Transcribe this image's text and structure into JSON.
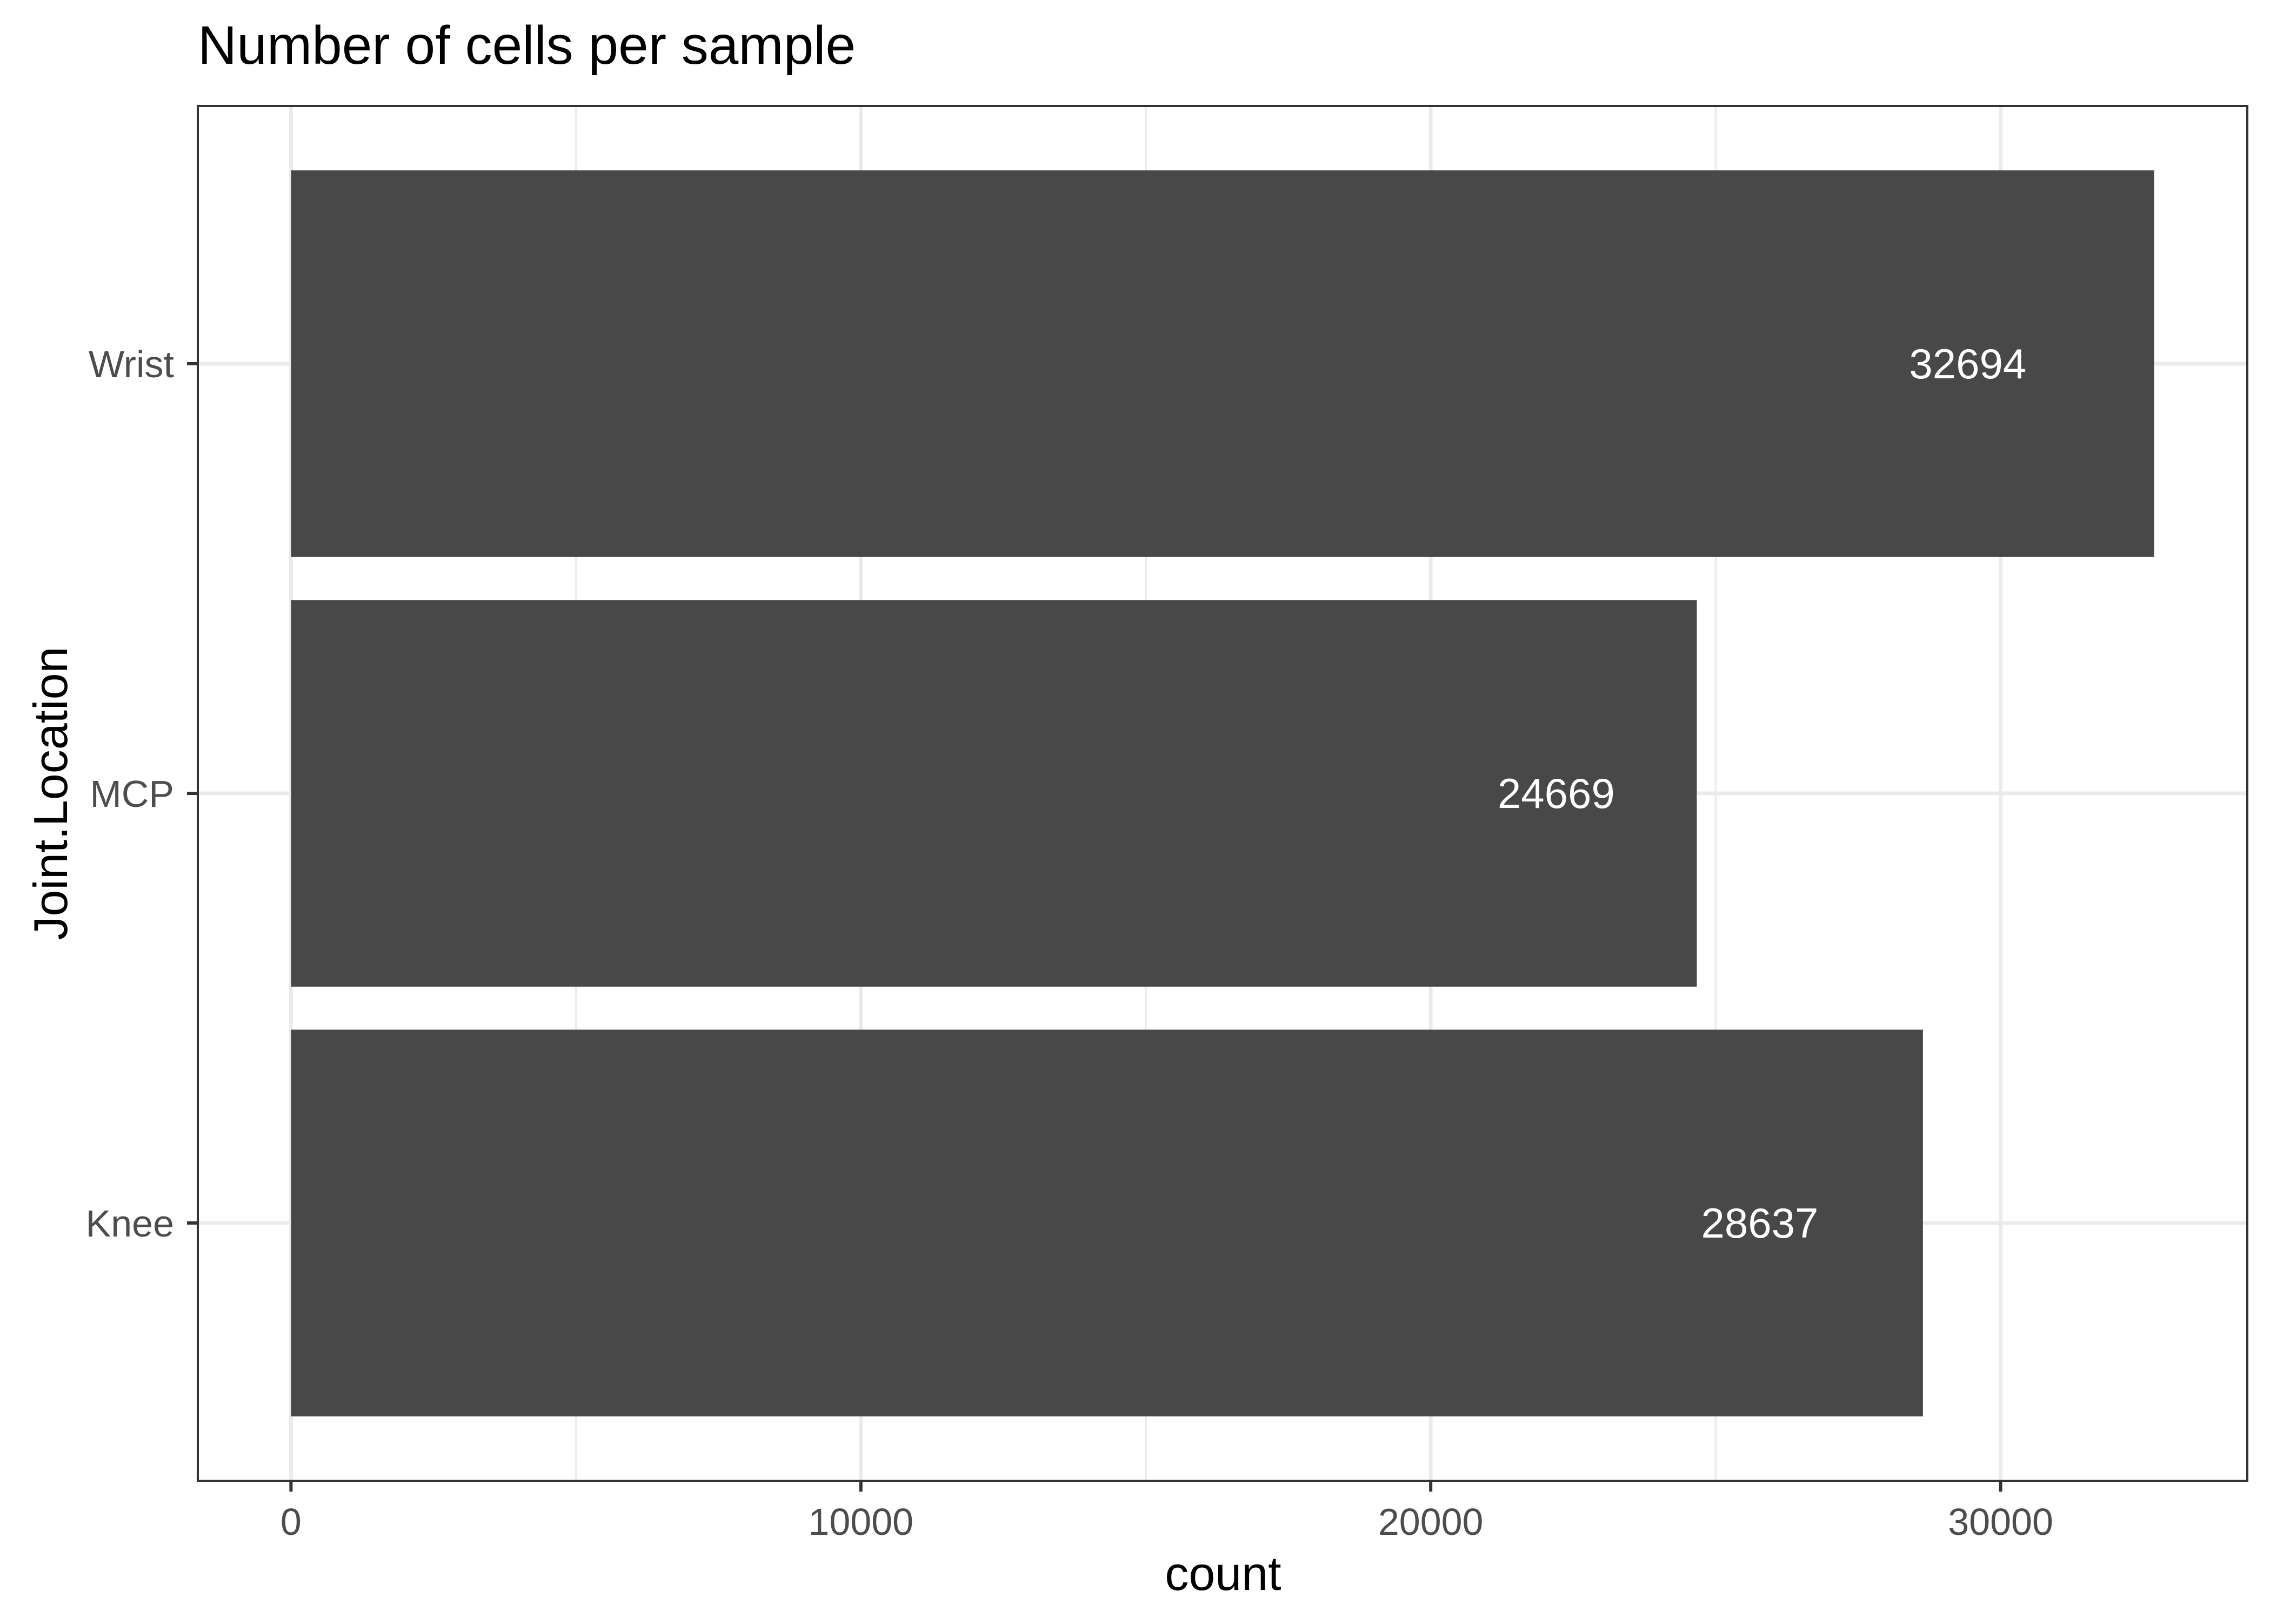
{
  "chart_data": {
    "type": "bar",
    "orientation": "horizontal",
    "title": "Number of cells per sample",
    "xlabel": "count",
    "ylabel": "Joint.Location",
    "categories": [
      "Knee",
      "MCP",
      "Wrist"
    ],
    "values": [
      28637,
      24669,
      32694
    ],
    "data_labels": [
      "28637",
      "24669",
      "32694"
    ],
    "xlim": [
      -1635,
      34329
    ],
    "xticks": [
      0,
      10000,
      20000,
      30000
    ],
    "xtick_labels": [
      "0",
      "10000",
      "20000",
      "30000"
    ],
    "grid": true,
    "legend": "none",
    "colors": {
      "bar": "#484848",
      "background": "#ffffff",
      "grid": "#ebebeb",
      "border": "#333333",
      "label": "#ffffff"
    }
  }
}
